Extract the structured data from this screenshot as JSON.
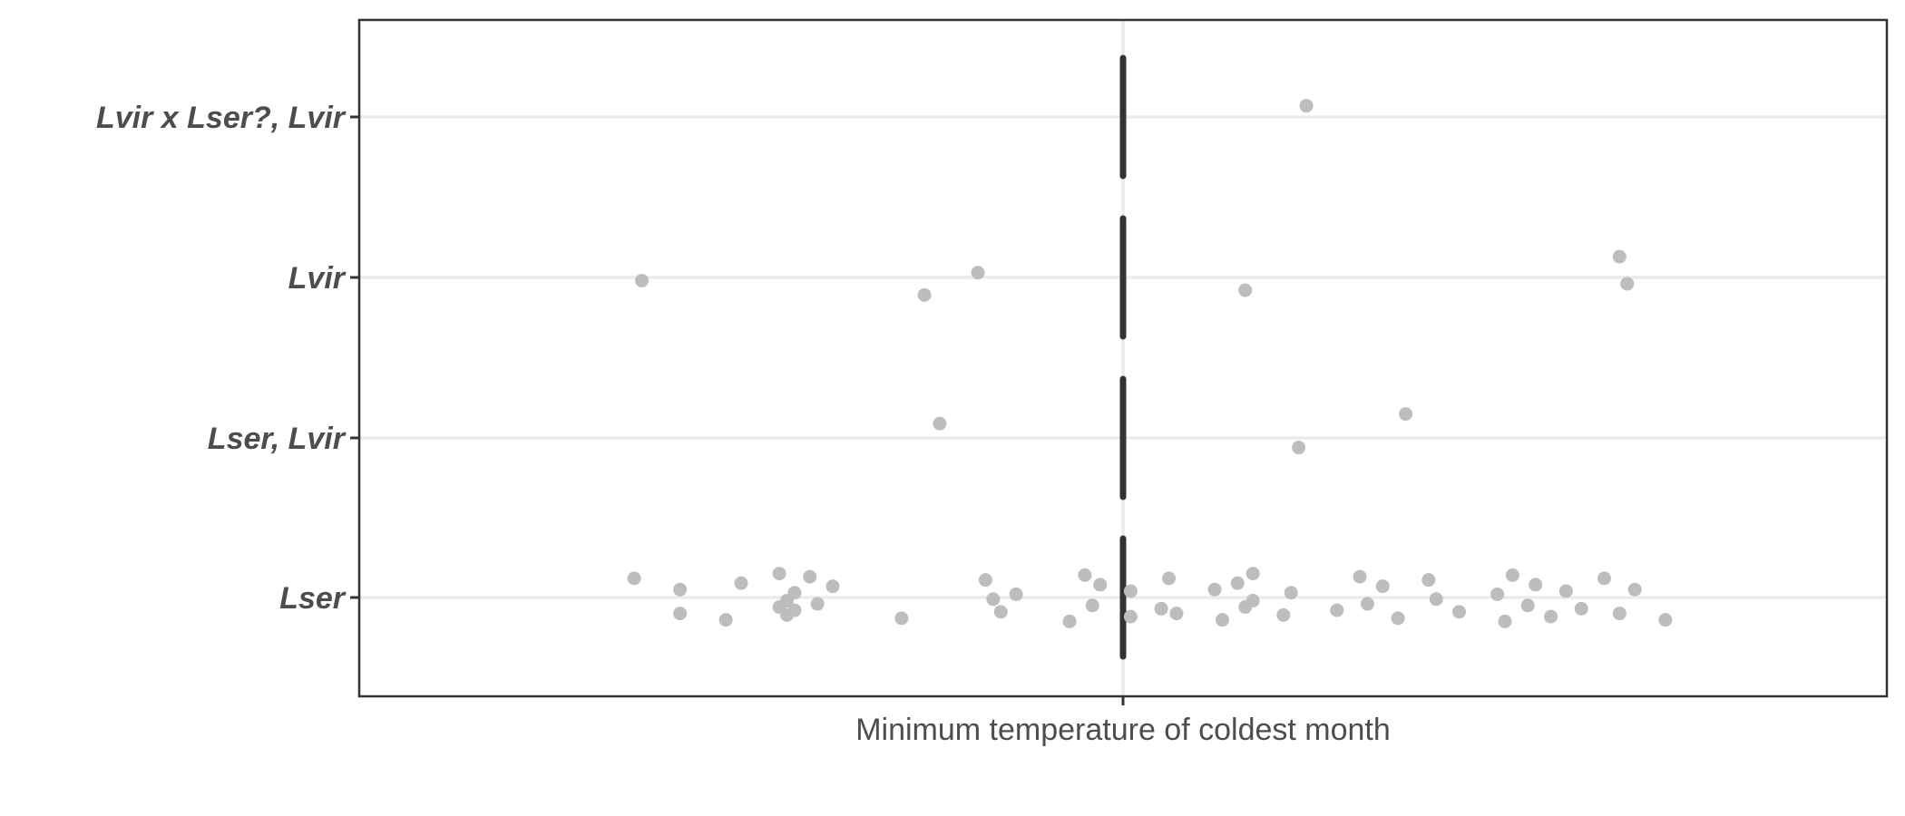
{
  "chart_data": {
    "type": "scatter",
    "xlabel": "",
    "ylabel": "",
    "x_tick_labels": [
      "Minimum temperature of coldest month"
    ],
    "grid": true,
    "colors": {
      "points": "#bdbdbd",
      "median_bar": "#333333",
      "gridlines": "#ebebeb",
      "panel_border": "#333333",
      "tick_text": "#4d4d4d"
    },
    "categories": [
      "Lser",
      "Lser, Lvir",
      "Lvir",
      "Lvir x Lser?, Lvir"
    ],
    "median_bars": {
      "x": 0,
      "categories": [
        "Lser",
        "Lser, Lvir",
        "Lvir",
        "Lvir x Lser?, Lvir"
      ]
    },
    "series": [
      {
        "category": "Lser",
        "x": [
          -0.64,
          -0.58,
          -0.58,
          -0.52,
          -0.5,
          -0.45,
          -0.45,
          -0.44,
          -0.44,
          -0.43,
          -0.43,
          -0.41,
          -0.4,
          -0.38,
          -0.29,
          -0.18,
          -0.17,
          -0.16,
          -0.14,
          -0.07,
          -0.05,
          -0.04,
          -0.03,
          0.01,
          0.01,
          0.05,
          0.06,
          0.07,
          0.12,
          0.13,
          0.15,
          0.16,
          0.17,
          0.17,
          0.21,
          0.22,
          0.28,
          0.31,
          0.32,
          0.34,
          0.36,
          0.4,
          0.41,
          0.44,
          0.49,
          0.5,
          0.51,
          0.53,
          0.54,
          0.56,
          0.58,
          0.6,
          0.63,
          0.65,
          0.67,
          0.71
        ]
      },
      {
        "category": "Lser, Lvir",
        "x": [
          -0.24,
          0.23,
          0.37
        ]
      },
      {
        "category": "Lvir",
        "x": [
          -0.63,
          -0.26,
          -0.19,
          0.16,
          0.65,
          0.66
        ]
      },
      {
        "category": "Lvir x Lser?, Lvir",
        "x": [
          0.24
        ]
      }
    ]
  }
}
